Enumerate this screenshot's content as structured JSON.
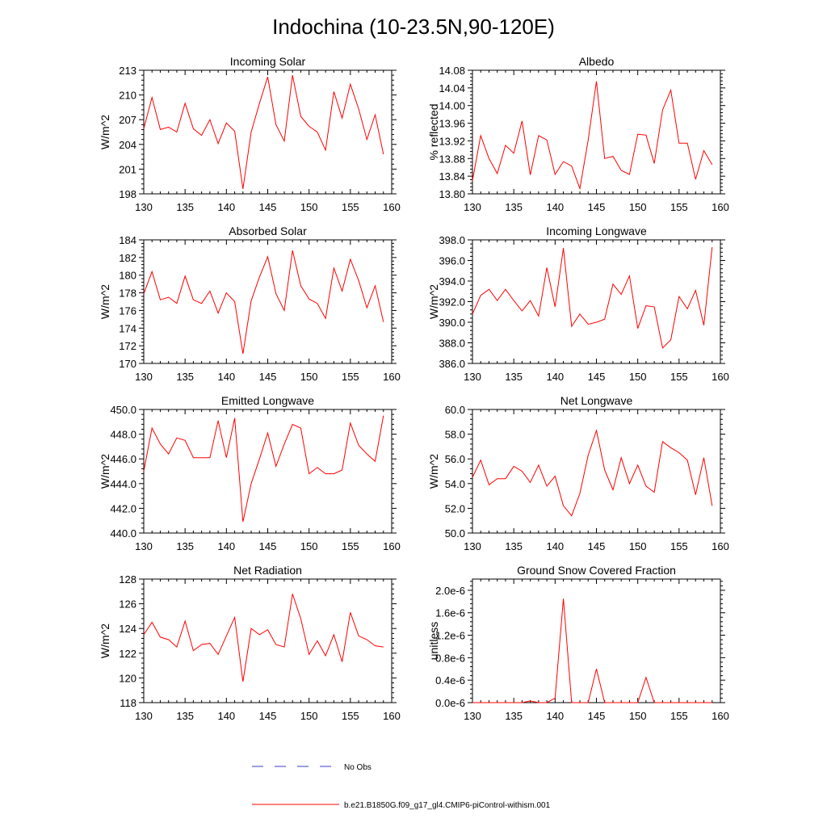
{
  "title": "Indochina (10-23.5N,90-120E)",
  "colors": {
    "model": "#ff0000",
    "obs": "#3b3bcc",
    "axis": "#000000"
  },
  "legend": {
    "obs_label": "No Obs",
    "model_label": "b.e21.B1850G.f09_g17_gl4.CMIP6-piControl-withism.001"
  },
  "chart_data": [
    {
      "type": "line",
      "title": "Incoming Solar",
      "ylabel": "W/m^2",
      "xlim": [
        130,
        160
      ],
      "ylim": [
        198,
        213
      ],
      "xticks": [
        "130",
        "135",
        "140",
        "145",
        "150",
        "155",
        "160"
      ],
      "yticks": [
        "198",
        "201",
        "204",
        "207",
        "210",
        "213"
      ],
      "x": [
        130,
        131,
        132,
        133,
        134,
        135,
        136,
        137,
        138,
        139,
        140,
        141,
        142,
        143,
        144,
        145,
        146,
        147,
        148,
        149,
        150,
        151,
        152,
        153,
        154,
        155,
        156,
        157,
        158,
        159
      ],
      "series": [
        {
          "values": [
            205.9,
            209.7,
            205.8,
            206.1,
            205.5,
            209.0,
            205.9,
            205.1,
            207.0,
            204.1,
            206.6,
            205.6,
            198.6,
            205.5,
            209.0,
            212.2,
            206.4,
            204.4,
            212.4,
            207.4,
            206.2,
            205.5,
            203.3,
            210.4,
            207.2,
            211.3,
            208.3,
            204.6,
            207.6,
            202.8
          ]
        }
      ]
    },
    {
      "type": "line",
      "title": "Albedo",
      "ylabel": "% reflected",
      "xlim": [
        130,
        160
      ],
      "ylim": [
        13.8,
        14.08
      ],
      "xticks": [
        "130",
        "135",
        "140",
        "145",
        "150",
        "155",
        "160"
      ],
      "yticks": [
        "13.80",
        "13.84",
        "13.88",
        "13.92",
        "13.96",
        "14.00",
        "14.04",
        "14.08"
      ],
      "x": [
        130,
        131,
        132,
        133,
        134,
        135,
        136,
        137,
        138,
        139,
        140,
        141,
        142,
        143,
        144,
        145,
        146,
        147,
        148,
        149,
        150,
        151,
        152,
        153,
        154,
        155,
        156,
        157,
        158,
        159
      ],
      "series": [
        {
          "values": [
            13.83,
            13.932,
            13.88,
            13.846,
            13.91,
            13.892,
            13.965,
            13.843,
            13.932,
            13.922,
            13.844,
            13.873,
            13.863,
            13.812,
            13.922,
            14.055,
            13.88,
            13.885,
            13.853,
            13.844,
            13.935,
            13.933,
            13.869,
            13.99,
            14.035,
            13.915,
            13.915,
            13.833,
            13.898,
            13.866
          ]
        }
      ]
    },
    {
      "type": "line",
      "title": "Absorbed Solar",
      "ylabel": "W/m^2",
      "xlim": [
        130,
        160
      ],
      "ylim": [
        170,
        184
      ],
      "xticks": [
        "130",
        "135",
        "140",
        "145",
        "150",
        "155",
        "160"
      ],
      "yticks": [
        "170",
        "172",
        "174",
        "176",
        "178",
        "180",
        "182",
        "184"
      ],
      "x": [
        130,
        131,
        132,
        133,
        134,
        135,
        136,
        137,
        138,
        139,
        140,
        141,
        142,
        143,
        144,
        145,
        146,
        147,
        148,
        149,
        150,
        151,
        152,
        153,
        154,
        155,
        156,
        157,
        158,
        159
      ],
      "series": [
        {
          "values": [
            177.9,
            180.4,
            177.2,
            177.5,
            176.8,
            179.9,
            177.2,
            176.8,
            178.2,
            175.7,
            178.0,
            177.0,
            171.1,
            177.1,
            179.8,
            182.1,
            177.9,
            176.0,
            182.8,
            178.8,
            177.3,
            176.8,
            175.1,
            180.8,
            178.2,
            181.8,
            179.4,
            176.3,
            178.8,
            174.7
          ]
        }
      ]
    },
    {
      "type": "line",
      "title": "Incoming Longwave",
      "ylabel": "W/m^2",
      "xlim": [
        130,
        160
      ],
      "ylim": [
        386.0,
        398.0
      ],
      "xticks": [
        "130",
        "135",
        "140",
        "145",
        "150",
        "155",
        "160"
      ],
      "yticks": [
        "386.0",
        "388.0",
        "390.0",
        "392.0",
        "394.0",
        "396.0",
        "398.0"
      ],
      "x": [
        130,
        131,
        132,
        133,
        134,
        135,
        136,
        137,
        138,
        139,
        140,
        141,
        142,
        143,
        144,
        145,
        146,
        147,
        148,
        149,
        150,
        151,
        152,
        153,
        154,
        155,
        156,
        157,
        158,
        159
      ],
      "series": [
        {
          "values": [
            390.8,
            392.6,
            393.2,
            392.1,
            393.2,
            392.1,
            391.1,
            392.1,
            390.6,
            395.3,
            391.5,
            397.2,
            389.6,
            390.8,
            389.8,
            390.0,
            390.3,
            393.7,
            392.7,
            394.5,
            389.4,
            391.6,
            391.5,
            387.5,
            388.3,
            392.5,
            391.3,
            393.1,
            389.7,
            397.3
          ]
        }
      ]
    },
    {
      "type": "line",
      "title": "Emitted Longwave",
      "ylabel": "W/m^2",
      "xlim": [
        130,
        160
      ],
      "ylim": [
        440.0,
        450.0
      ],
      "xticks": [
        "130",
        "135",
        "140",
        "145",
        "150",
        "155",
        "160"
      ],
      "yticks": [
        "440.0",
        "442.0",
        "444.0",
        "446.0",
        "448.0",
        "450.0"
      ],
      "x": [
        130,
        131,
        132,
        133,
        134,
        135,
        136,
        137,
        138,
        139,
        140,
        141,
        142,
        143,
        144,
        145,
        146,
        147,
        148,
        149,
        150,
        151,
        152,
        153,
        154,
        155,
        156,
        157,
        158,
        159
      ],
      "series": [
        {
          "values": [
            445.0,
            448.5,
            447.2,
            446.4,
            447.7,
            447.5,
            446.1,
            446.1,
            446.1,
            449.1,
            446.1,
            449.3,
            440.9,
            444.0,
            446.0,
            448.1,
            445.4,
            447.2,
            448.8,
            448.5,
            444.8,
            445.3,
            444.8,
            444.8,
            445.1,
            448.9,
            447.1,
            446.4,
            445.8,
            449.5
          ]
        }
      ]
    },
    {
      "type": "line",
      "title": "Net Longwave",
      "ylabel": "W/m^2",
      "xlim": [
        130,
        160
      ],
      "ylim": [
        50.0,
        60.0
      ],
      "xticks": [
        "130",
        "135",
        "140",
        "145",
        "150",
        "155",
        "160"
      ],
      "yticks": [
        "50.0",
        "52.0",
        "54.0",
        "56.0",
        "58.0",
        "60.0"
      ],
      "x": [
        130,
        131,
        132,
        133,
        134,
        135,
        136,
        137,
        138,
        139,
        140,
        141,
        142,
        143,
        144,
        145,
        146,
        147,
        148,
        149,
        150,
        151,
        152,
        153,
        154,
        155,
        156,
        157,
        158,
        159
      ],
      "series": [
        {
          "values": [
            54.5,
            55.9,
            53.9,
            54.4,
            54.4,
            55.4,
            55.0,
            54.1,
            55.5,
            53.8,
            54.6,
            52.2,
            51.4,
            53.2,
            56.3,
            58.3,
            55.1,
            53.5,
            56.1,
            54.0,
            55.5,
            53.8,
            53.3,
            57.4,
            56.9,
            56.5,
            55.9,
            53.1,
            56.1,
            52.2
          ]
        }
      ]
    },
    {
      "type": "line",
      "title": "Net Radiation",
      "ylabel": "W/m^2",
      "xlim": [
        130,
        160
      ],
      "ylim": [
        118,
        128
      ],
      "xticks": [
        "130",
        "135",
        "140",
        "145",
        "150",
        "155",
        "160"
      ],
      "yticks": [
        "118",
        "120",
        "122",
        "124",
        "126",
        "128"
      ],
      "x": [
        130,
        131,
        132,
        133,
        134,
        135,
        136,
        137,
        138,
        139,
        140,
        141,
        142,
        143,
        144,
        145,
        146,
        147,
        148,
        149,
        150,
        151,
        152,
        153,
        154,
        155,
        156,
        157,
        158,
        159
      ],
      "series": [
        {
          "values": [
            123.5,
            124.5,
            123.3,
            123.1,
            122.5,
            124.6,
            122.2,
            122.7,
            122.8,
            121.9,
            123.4,
            124.9,
            119.7,
            124.0,
            123.5,
            123.9,
            122.7,
            122.5,
            126.8,
            124.8,
            121.9,
            123.0,
            121.8,
            123.5,
            121.3,
            125.3,
            123.4,
            123.1,
            122.6,
            122.5
          ]
        }
      ]
    },
    {
      "type": "line",
      "title": "Ground Snow Covered Fraction",
      "ylabel": "unitless",
      "xlim": [
        130,
        160
      ],
      "ylim": [
        0.0,
        2.2e-06
      ],
      "xticks": [
        "130",
        "135",
        "140",
        "145",
        "150",
        "155",
        "160"
      ],
      "yticks": [
        "0.0e-6",
        "0.4e-6",
        "0.8e-6",
        "1.2e-6",
        "1.6e-6",
        "2.0e-6"
      ],
      "x": [
        130,
        131,
        132,
        133,
        134,
        135,
        136,
        137,
        138,
        139,
        140,
        141,
        142,
        143,
        144,
        145,
        146,
        147,
        148,
        149,
        150,
        151,
        152,
        153,
        154,
        155,
        156,
        157,
        158,
        159
      ],
      "series": [
        {
          "values": [
            0,
            0,
            0,
            0,
            0,
            0,
            0,
            3e-08,
            0,
            0,
            8e-08,
            1.85e-06,
            0,
            0,
            0,
            6e-07,
            0,
            0,
            0,
            0,
            0,
            4.5e-07,
            0,
            0,
            0,
            0,
            0,
            0,
            0,
            0
          ]
        }
      ]
    }
  ]
}
